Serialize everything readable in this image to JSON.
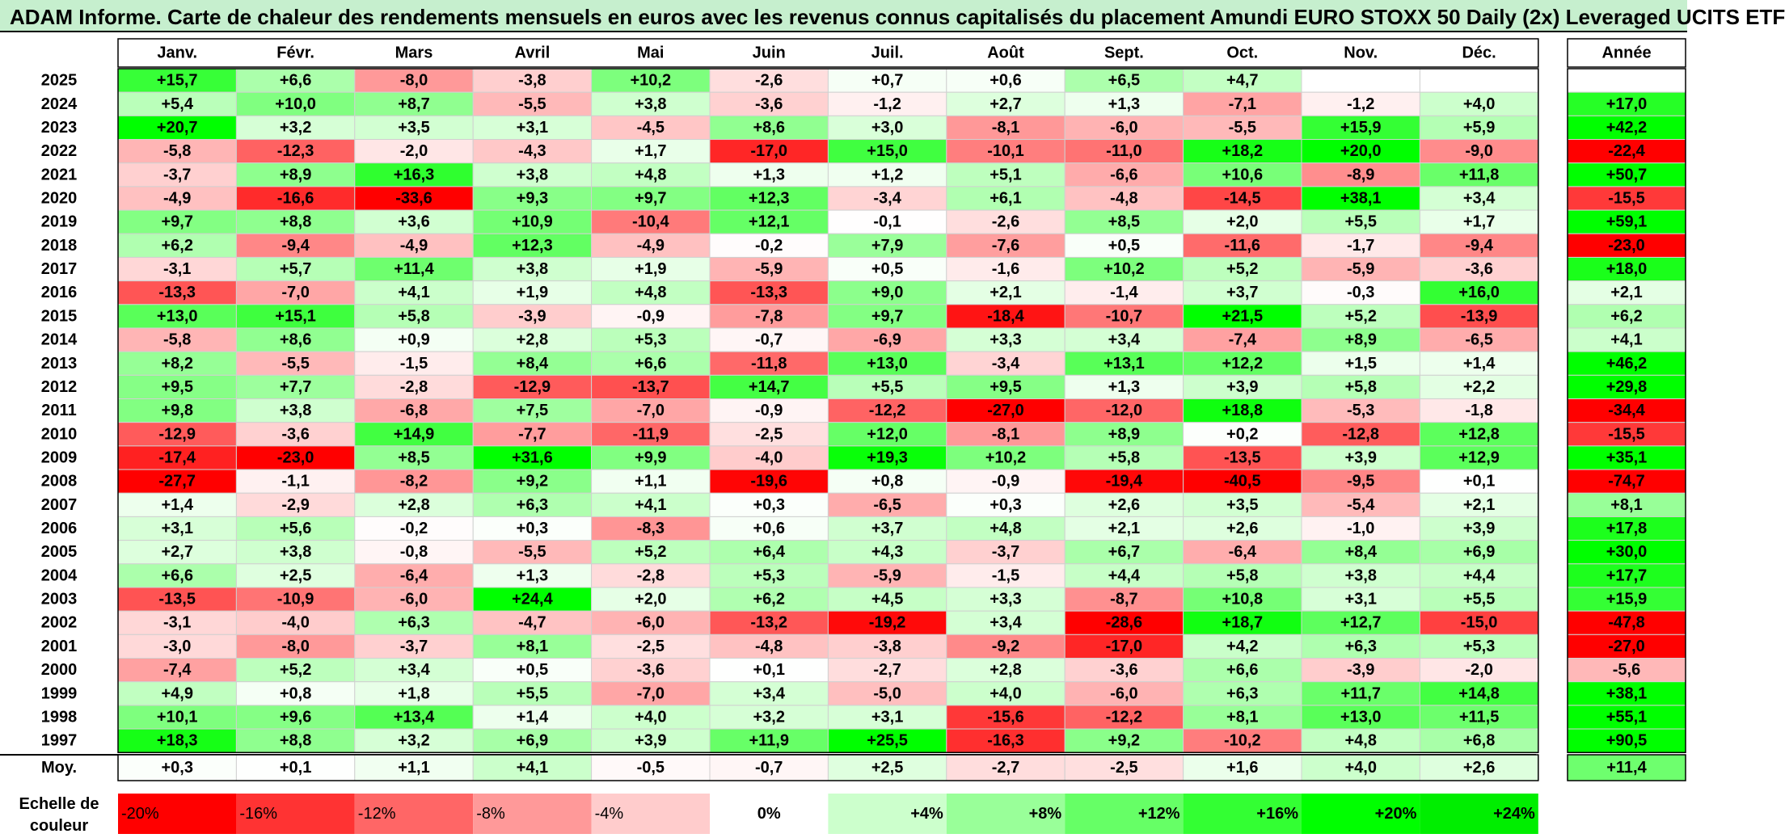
{
  "title": "ADAM Informe. Carte de chaleur des rendements mensuels en euros avec les revenus connus capitalisés du placement Amundi EURO STOXX 50 Daily (2x) Leveraged UCITS ETF",
  "chart_data": {
    "type": "heatmap",
    "months": [
      "Janv.",
      "Févr.",
      "Mars",
      "Avril",
      "Mai",
      "Juin",
      "Juil.",
      "Août",
      "Sept.",
      "Oct.",
      "Nov.",
      "Déc."
    ],
    "annual_header": "Année",
    "rows": [
      {
        "year": "2025",
        "values": [
          "+15,7",
          "+6,6",
          "-8,0",
          "-3,8",
          "+10,2",
          "-2,6",
          "+0,7",
          "+0,6",
          "+6,5",
          "+4,7",
          "",
          ""
        ],
        "annual": ""
      },
      {
        "year": "2024",
        "values": [
          "+5,4",
          "+10,0",
          "+8,7",
          "-5,5",
          "+3,8",
          "-3,6",
          "-1,2",
          "+2,7",
          "+1,3",
          "-7,1",
          "-1,2",
          "+4,0"
        ],
        "annual": "+17,0"
      },
      {
        "year": "2023",
        "values": [
          "+20,7",
          "+3,2",
          "+3,5",
          "+3,1",
          "-4,5",
          "+8,6",
          "+3,0",
          "-8,1",
          "-6,0",
          "-5,5",
          "+15,9",
          "+5,9"
        ],
        "annual": "+42,2"
      },
      {
        "year": "2022",
        "values": [
          "-5,8",
          "-12,3",
          "-2,0",
          "-4,3",
          "+1,7",
          "-17,0",
          "+15,0",
          "-10,1",
          "-11,0",
          "+18,2",
          "+20,0",
          "-9,0"
        ],
        "annual": "-22,4"
      },
      {
        "year": "2021",
        "values": [
          "-3,7",
          "+8,9",
          "+16,3",
          "+3,8",
          "+4,8",
          "+1,3",
          "+1,2",
          "+5,1",
          "-6,6",
          "+10,6",
          "-8,9",
          "+11,8"
        ],
        "annual": "+50,7"
      },
      {
        "year": "2020",
        "values": [
          "-4,9",
          "-16,6",
          "-33,6",
          "+9,3",
          "+9,7",
          "+12,3",
          "-3,4",
          "+6,1",
          "-4,8",
          "-14,5",
          "+38,1",
          "+3,4"
        ],
        "annual": "-15,5"
      },
      {
        "year": "2019",
        "values": [
          "+9,7",
          "+8,8",
          "+3,6",
          "+10,9",
          "-10,4",
          "+12,1",
          "-0,1",
          "-2,6",
          "+8,5",
          "+2,0",
          "+5,5",
          "+1,7"
        ],
        "annual": "+59,1"
      },
      {
        "year": "2018",
        "values": [
          "+6,2",
          "-9,4",
          "-4,9",
          "+12,3",
          "-4,9",
          "-0,2",
          "+7,9",
          "-7,6",
          "+0,5",
          "-11,6",
          "-1,7",
          "-9,4"
        ],
        "annual": "-23,0"
      },
      {
        "year": "2017",
        "values": [
          "-3,1",
          "+5,7",
          "+11,4",
          "+3,8",
          "+1,9",
          "-5,9",
          "+0,5",
          "-1,6",
          "+10,2",
          "+5,2",
          "-5,9",
          "-3,6"
        ],
        "annual": "+18,0"
      },
      {
        "year": "2016",
        "values": [
          "-13,3",
          "-7,0",
          "+4,1",
          "+1,9",
          "+4,8",
          "-13,3",
          "+9,0",
          "+2,1",
          "-1,4",
          "+3,7",
          "-0,3",
          "+16,0"
        ],
        "annual": "+2,1"
      },
      {
        "year": "2015",
        "values": [
          "+13,0",
          "+15,1",
          "+5,8",
          "-3,9",
          "-0,9",
          "-7,8",
          "+9,7",
          "-18,4",
          "-10,7",
          "+21,5",
          "+5,2",
          "-13,9"
        ],
        "annual": "+6,2"
      },
      {
        "year": "2014",
        "values": [
          "-5,8",
          "+8,6",
          "+0,9",
          "+2,8",
          "+5,3",
          "-0,7",
          "-6,9",
          "+3,3",
          "+3,4",
          "-7,4",
          "+8,9",
          "-6,5"
        ],
        "annual": "+4,1"
      },
      {
        "year": "2013",
        "values": [
          "+8,2",
          "-5,5",
          "-1,5",
          "+8,4",
          "+6,6",
          "-11,8",
          "+13,0",
          "-3,4",
          "+13,1",
          "+12,2",
          "+1,5",
          "+1,4"
        ],
        "annual": "+46,2"
      },
      {
        "year": "2012",
        "values": [
          "+9,5",
          "+7,7",
          "-2,8",
          "-12,9",
          "-13,7",
          "+14,7",
          "+5,5",
          "+9,5",
          "+1,3",
          "+3,9",
          "+5,8",
          "+2,2"
        ],
        "annual": "+29,8"
      },
      {
        "year": "2011",
        "values": [
          "+9,8",
          "+3,8",
          "-6,8",
          "+7,5",
          "-7,0",
          "-0,9",
          "-12,2",
          "-27,0",
          "-12,0",
          "+18,8",
          "-5,3",
          "-1,8"
        ],
        "annual": "-34,4"
      },
      {
        "year": "2010",
        "values": [
          "-12,9",
          "-3,6",
          "+14,9",
          "-7,7",
          "-11,9",
          "-2,5",
          "+12,0",
          "-8,1",
          "+8,9",
          "+0,2",
          "-12,8",
          "+12,8"
        ],
        "annual": "-15,5"
      },
      {
        "year": "2009",
        "values": [
          "-17,4",
          "-23,0",
          "+8,5",
          "+31,6",
          "+9,9",
          "-4,0",
          "+19,3",
          "+10,2",
          "+5,8",
          "-13,5",
          "+3,9",
          "+12,9"
        ],
        "annual": "+35,1"
      },
      {
        "year": "2008",
        "values": [
          "-27,7",
          "-1,1",
          "-8,2",
          "+9,2",
          "+1,1",
          "-19,6",
          "+0,8",
          "-0,9",
          "-19,4",
          "-40,5",
          "-9,5",
          "+0,1"
        ],
        "annual": "-74,7"
      },
      {
        "year": "2007",
        "values": [
          "+1,4",
          "-2,9",
          "+2,8",
          "+6,3",
          "+4,1",
          "+0,3",
          "-6,5",
          "+0,3",
          "+2,6",
          "+3,5",
          "-5,4",
          "+2,1"
        ],
        "annual": "+8,1"
      },
      {
        "year": "2006",
        "values": [
          "+3,1",
          "+5,6",
          "-0,2",
          "+0,3",
          "-8,3",
          "+0,6",
          "+3,7",
          "+4,8",
          "+2,1",
          "+2,6",
          "-1,0",
          "+3,9"
        ],
        "annual": "+17,8"
      },
      {
        "year": "2005",
        "values": [
          "+2,7",
          "+3,8",
          "-0,8",
          "-5,5",
          "+5,2",
          "+6,4",
          "+4,3",
          "-3,7",
          "+6,7",
          "-6,4",
          "+8,4",
          "+6,9"
        ],
        "annual": "+30,0"
      },
      {
        "year": "2004",
        "values": [
          "+6,6",
          "+2,5",
          "-6,4",
          "+1,3",
          "-2,8",
          "+5,3",
          "-5,9",
          "-1,5",
          "+4,4",
          "+5,8",
          "+3,8",
          "+4,4"
        ],
        "annual": "+17,7"
      },
      {
        "year": "2003",
        "values": [
          "-13,5",
          "-10,9",
          "-6,0",
          "+24,4",
          "+2,0",
          "+6,2",
          "+4,5",
          "+3,3",
          "-8,7",
          "+10,8",
          "+3,1",
          "+5,5"
        ],
        "annual": "+15,9"
      },
      {
        "year": "2002",
        "values": [
          "-3,1",
          "-4,0",
          "+6,3",
          "-4,7",
          "-6,0",
          "-13,2",
          "-19,2",
          "+3,4",
          "-28,6",
          "+18,7",
          "+12,7",
          "-15,0"
        ],
        "annual": "-47,8"
      },
      {
        "year": "2001",
        "values": [
          "-3,0",
          "-8,0",
          "-3,7",
          "+8,1",
          "-2,5",
          "-4,8",
          "-3,8",
          "-9,2",
          "-17,0",
          "+4,2",
          "+6,3",
          "+5,3"
        ],
        "annual": "-27,0"
      },
      {
        "year": "2000",
        "values": [
          "-7,4",
          "+5,2",
          "+3,4",
          "+0,5",
          "-3,6",
          "+0,1",
          "-2,7",
          "+2,8",
          "-3,6",
          "+6,6",
          "-3,9",
          "-2,0"
        ],
        "annual": "-5,6"
      },
      {
        "year": "1999",
        "values": [
          "+4,9",
          "+0,8",
          "+1,8",
          "+5,5",
          "-7,0",
          "+3,4",
          "-5,0",
          "+4,0",
          "-6,0",
          "+6,3",
          "+11,7",
          "+14,8"
        ],
        "annual": "+38,1"
      },
      {
        "year": "1998",
        "values": [
          "+10,1",
          "+9,6",
          "+13,4",
          "+1,4",
          "+4,0",
          "+3,2",
          "+3,1",
          "-15,6",
          "-12,2",
          "+8,1",
          "+13,0",
          "+11,5"
        ],
        "annual": "+55,1"
      },
      {
        "year": "1997",
        "values": [
          "+18,3",
          "+8,8",
          "+3,2",
          "+6,9",
          "+3,9",
          "+11,9",
          "+25,5",
          "-16,3",
          "+9,2",
          "-10,2",
          "+4,8",
          "+6,8"
        ],
        "annual": "+90,5"
      }
    ],
    "average": {
      "label": "Moy.",
      "values": [
        "+0,3",
        "+0,1",
        "+1,1",
        "+4,1",
        "-0,5",
        "-0,7",
        "+2,5",
        "-2,7",
        "-2,5",
        "+1,6",
        "+4,0",
        "+2,6"
      ],
      "annual": "+11,4"
    },
    "scale": {
      "label_line1": "Echelle de",
      "label_line2": "couleur",
      "steps": [
        {
          "label": "-20%",
          "color": "#ff0000"
        },
        {
          "label": "-16%",
          "color": "#ff3333"
        },
        {
          "label": "-12%",
          "color": "#ff6666"
        },
        {
          "label": "-8%",
          "color": "#ff9999"
        },
        {
          "label": "-4%",
          "color": "#ffcccc"
        },
        {
          "label": "0%",
          "color": "#ffffff"
        },
        {
          "label": "+4%",
          "color": "#ccffcc"
        },
        {
          "label": "+8%",
          "color": "#99ff99"
        },
        {
          "label": "+12%",
          "color": "#66ff66"
        },
        {
          "label": "+16%",
          "color": "#33ff33"
        },
        {
          "label": "+20%",
          "color": "#00ff00"
        },
        {
          "label": "+24%",
          "color": "#00ee00"
        }
      ]
    }
  }
}
